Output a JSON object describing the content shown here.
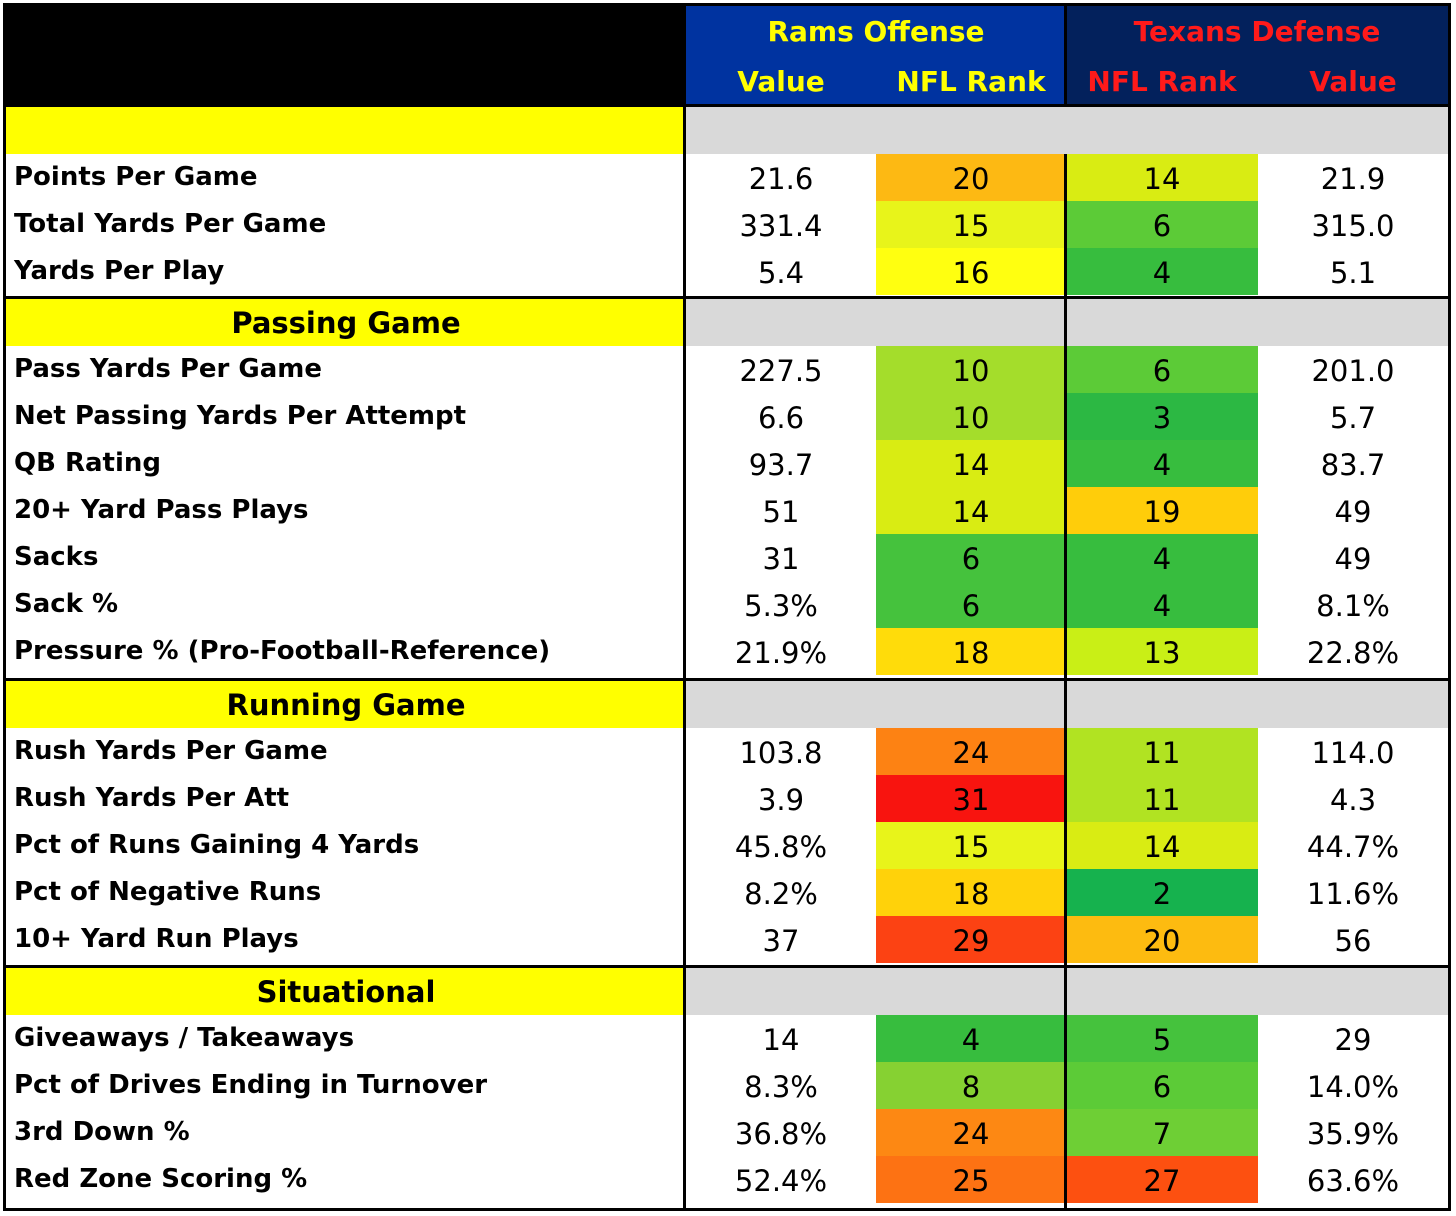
{
  "header": {
    "rams_title": "Rams Offense",
    "texans_title": "Texans Defense",
    "rams_value": "Value",
    "rams_rank": "NFL Rank",
    "texans_rank": "NFL Rank",
    "texans_value": "Value"
  },
  "colors": {
    "rams_header_bg": "#0033a0",
    "texans_header_bg": "#03215c",
    "section_yellow": "#ffff00",
    "section_gray": "#d9d9d9",
    "header_text_yellow": "#ffff00",
    "header_text_red": "#ff1a1a"
  },
  "sections": [
    {
      "title": "",
      "rows": [
        {
          "label": "Points Per Game",
          "rams_value": "21.6",
          "rams_rank": "20",
          "texans_rank": "14",
          "texans_value": "21.9",
          "rams_rank_color": "#fdb913",
          "texans_rank_color": "#d9ec13"
        },
        {
          "label": "Total Yards Per Game",
          "rams_value": "331.4",
          "rams_rank": "15",
          "texans_rank": "6",
          "texans_value": "315.0",
          "rams_rank_color": "#e8f41a",
          "texans_rank_color": "#5ccb37"
        },
        {
          "label": "Yards Per Play",
          "rams_value": "5.4",
          "rams_rank": "16",
          "texans_rank": "4",
          "texans_value": "5.1",
          "rams_rank_color": "#ffff10",
          "texans_rank_color": "#37bd3e"
        }
      ]
    },
    {
      "title": "Passing Game",
      "rows": [
        {
          "label": "Pass Yards Per Game",
          "rams_value": "227.5",
          "rams_rank": "10",
          "texans_rank": "6",
          "texans_value": "201.0",
          "rams_rank_color": "#a4dd2b",
          "texans_rank_color": "#5ccb37"
        },
        {
          "label": "Net Passing Yards Per Attempt",
          "rams_value": "6.6",
          "rams_rank": "10",
          "texans_rank": "3",
          "texans_value": "5.7",
          "rams_rank_color": "#a4dd2b",
          "texans_rank_color": "#2cb843"
        },
        {
          "label": "QB Rating",
          "rams_value": "93.7",
          "rams_rank": "14",
          "texans_rank": "4",
          "texans_value": "83.7",
          "rams_rank_color": "#d9ec13",
          "texans_rank_color": "#37bd3e"
        },
        {
          "label": "20+ Yard Pass Plays",
          "rams_value": "51",
          "rams_rank": "14",
          "texans_rank": "19",
          "texans_value": "49",
          "rams_rank_color": "#d9ec13",
          "texans_rank_color": "#ffcd0a"
        },
        {
          "label": "Sacks",
          "rams_value": "31",
          "rams_rank": "6",
          "texans_rank": "4",
          "texans_value": "49",
          "rams_rank_color": "#45c23d",
          "texans_rank_color": "#37bd3e"
        },
        {
          "label": "Sack %",
          "rams_value": "5.3%",
          "rams_rank": "6",
          "texans_rank": "4",
          "texans_value": "8.1%",
          "rams_rank_color": "#45c23d",
          "texans_rank_color": "#37bd3e"
        },
        {
          "label": "Pressure % (Pro-Football-Reference)",
          "rams_value": "21.9%",
          "rams_rank": "18",
          "texans_rank": "13",
          "texans_value": "22.8%",
          "rams_rank_color": "#ffdc0a",
          "texans_rank_color": "#c9ef16"
        }
      ]
    },
    {
      "title": "Running Game",
      "rows": [
        {
          "label": "Rush Yards Per Game",
          "rams_value": "103.8",
          "rams_rank": "24",
          "texans_rank": "11",
          "texans_value": "114.0",
          "rams_rank_color": "#fd8213",
          "texans_rank_color": "#b1e322"
        },
        {
          "label": "Rush Yards Per Att",
          "rams_value": "3.9",
          "rams_rank": "31",
          "texans_rank": "11",
          "texans_value": "4.3",
          "rams_rank_color": "#f8140f",
          "texans_rank_color": "#b1e322"
        },
        {
          "label": "Pct of Runs Gaining 4 Yards",
          "rams_value": "45.8%",
          "rams_rank": "15",
          "texans_rank": "14",
          "texans_value": "44.7%",
          "rams_rank_color": "#e8f41a",
          "texans_rank_color": "#d9ec13"
        },
        {
          "label": "Pct of Negative Runs",
          "rams_value": "8.2%",
          "rams_rank": "18",
          "texans_rank": "2",
          "texans_value": "11.6%",
          "rams_rank_color": "#ffd20a",
          "texans_rank_color": "#16b24e"
        },
        {
          "label": "10+ Yard Run Plays",
          "rams_value": "37",
          "rams_rank": "29",
          "texans_rank": "20",
          "texans_value": "56",
          "rams_rank_color": "#fc4213",
          "texans_rank_color": "#fdbb10"
        }
      ]
    },
    {
      "title": "Situational",
      "rows": [
        {
          "label": "Giveaways / Takeaways",
          "rams_value": "14",
          "rams_rank": "4",
          "texans_rank": "5",
          "texans_value": "29",
          "rams_rank_color": "#37bd3e",
          "texans_rank_color": "#45c23d"
        },
        {
          "label": "Pct of Drives Ending in Turnover",
          "rams_value": "8.3%",
          "rams_rank": "8",
          "texans_rank": "6",
          "texans_value": "14.0%",
          "rams_rank_color": "#86d132",
          "texans_rank_color": "#5ccb37"
        },
        {
          "label": "3rd Down %",
          "rams_value": "36.8%",
          "rams_rank": "24",
          "texans_rank": "7",
          "texans_value": "35.9%",
          "rams_rank_color": "#fd8813",
          "texans_rank_color": "#6ecf35"
        },
        {
          "label": "Red Zone Scoring %",
          "rams_value": "52.4%",
          "rams_rank": "25",
          "texans_rank": "27",
          "texans_value": "63.6%",
          "rams_rank_color": "#fd7213",
          "texans_rank_color": "#fd5010"
        }
      ]
    }
  ]
}
